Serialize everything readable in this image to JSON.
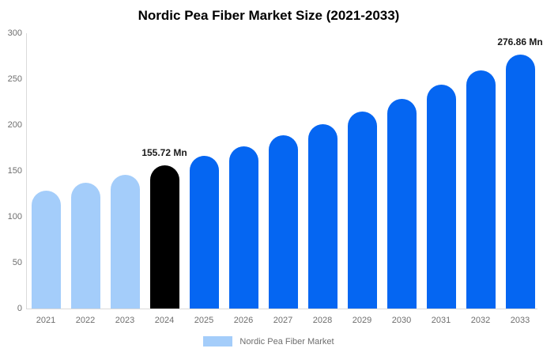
{
  "title": "Nordic Pea Fiber Market Size (2021-2033)",
  "legend": {
    "label": "Nordic Pea Fiber Market",
    "swatch_color": "#A4CDFA"
  },
  "colors": {
    "historical_bar": "#A4CDFA",
    "base_year_bar": "#000000",
    "forecast_bar": "#0566F2",
    "axis_line": "#DADADA",
    "tick_text": "#6E6E6E",
    "data_label_text": "#1A1A1A"
  },
  "chart_data": {
    "type": "bar",
    "title": "Nordic Pea Fiber Market Size (2021-2033)",
    "xlabel": "",
    "ylabel": "",
    "unit": "Mn",
    "categories": [
      "2021",
      "2022",
      "2023",
      "2024",
      "2025",
      "2026",
      "2027",
      "2028",
      "2029",
      "2030",
      "2031",
      "2032",
      "2033"
    ],
    "values": [
      128.6,
      137.0,
      146.1,
      155.72,
      166.0,
      177.0,
      188.6,
      201.1,
      214.4,
      228.5,
      243.6,
      259.7,
      276.86
    ],
    "segments": [
      "historical",
      "historical",
      "historical",
      "base_year",
      "forecast",
      "forecast",
      "forecast",
      "forecast",
      "forecast",
      "forecast",
      "forecast",
      "forecast",
      "forecast"
    ],
    "data_labels": [
      {
        "index": 3,
        "text": "155.72 Mn"
      },
      {
        "index": 12,
        "text": "276.86 Mn"
      }
    ],
    "ylim": [
      0,
      300
    ],
    "yticks": [
      0,
      50,
      100,
      150,
      200,
      250,
      300
    ],
    "grid": false,
    "legend_position": "bottom"
  }
}
